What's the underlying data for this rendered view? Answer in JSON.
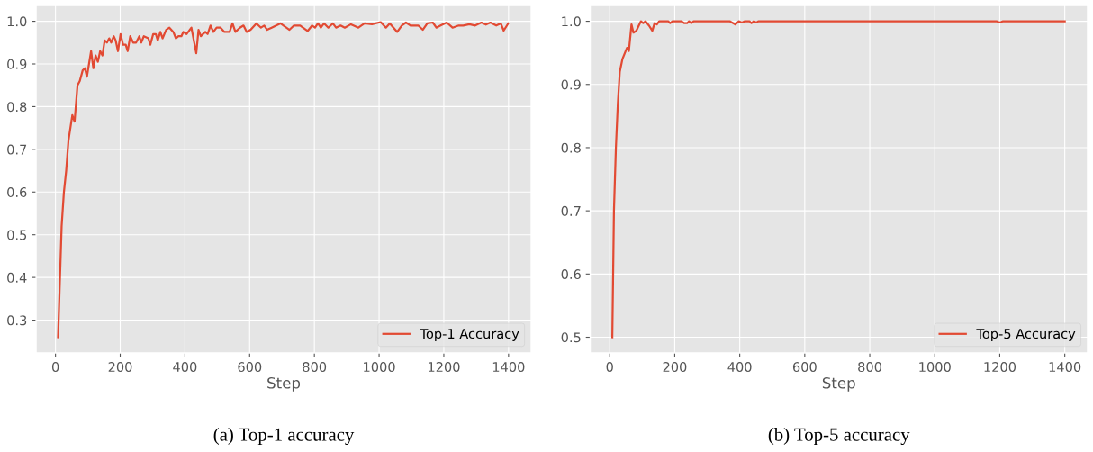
{
  "chart_data": [
    {
      "type": "line",
      "title": "(a) Top-1 accuracy",
      "xlabel": "Step",
      "xlim": [
        -60,
        1470
      ],
      "xticks": [
        0,
        200,
        400,
        600,
        800,
        1000,
        1200,
        1400
      ],
      "ylim": [
        0.223,
        1.037
      ],
      "yticks": [
        {
          "value": 0.3,
          "label": "0.3"
        },
        {
          "value": 0.4,
          "label": "0.4"
        },
        {
          "value": 0.5,
          "label": "0.5"
        },
        {
          "value": 0.6,
          "label": "0.6"
        },
        {
          "value": 0.7,
          "label": "0.7"
        },
        {
          "value": 0.8,
          "label": "0.8"
        },
        {
          "value": 0.9,
          "label": "0.9"
        },
        {
          "value": 1.0,
          "label": "1.0"
        }
      ],
      "grid": true,
      "legend": "bottom right",
      "marker": "none",
      "line_style": "solid",
      "series": [
        {
          "name": "Top-1 Accuracy",
          "color": "#e24a33",
          "x": [
            8,
            19,
            26,
            33,
            40,
            52,
            59,
            68,
            75,
            84,
            91,
            97,
            110,
            117,
            124,
            131,
            138,
            145,
            152,
            159,
            166,
            172,
            180,
            186,
            193,
            201,
            209,
            217,
            223,
            231,
            240,
            249,
            259,
            265,
            273,
            287,
            293,
            302,
            310,
            316,
            324,
            331,
            342,
            352,
            364,
            372,
            380,
            389,
            395,
            405,
            420,
            435,
            442,
            449,
            463,
            470,
            479,
            488,
            498,
            510,
            522,
            538,
            547,
            556,
            570,
            581,
            591,
            603,
            621,
            635,
            645,
            654,
            668,
            695,
            723,
            737,
            756,
            779,
            793,
            802,
            811,
            820,
            830,
            843,
            857,
            867,
            881,
            894,
            913,
            936,
            955,
            978,
            1005,
            1021,
            1033,
            1056,
            1070,
            1083,
            1097,
            1121,
            1135,
            1149,
            1166,
            1177,
            1190,
            1209,
            1227,
            1246,
            1260,
            1279,
            1297,
            1316,
            1330,
            1344,
            1362,
            1376,
            1385,
            1399
          ],
          "values": [
            0.26,
            0.52,
            0.6,
            0.65,
            0.72,
            0.78,
            0.765,
            0.85,
            0.86,
            0.885,
            0.89,
            0.87,
            0.93,
            0.89,
            0.92,
            0.905,
            0.93,
            0.92,
            0.955,
            0.95,
            0.96,
            0.95,
            0.965,
            0.955,
            0.93,
            0.97,
            0.945,
            0.945,
            0.93,
            0.965,
            0.95,
            0.95,
            0.965,
            0.95,
            0.965,
            0.96,
            0.945,
            0.97,
            0.97,
            0.955,
            0.975,
            0.96,
            0.98,
            0.985,
            0.975,
            0.96,
            0.965,
            0.965,
            0.975,
            0.97,
            0.985,
            0.925,
            0.98,
            0.965,
            0.975,
            0.97,
            0.99,
            0.975,
            0.985,
            0.985,
            0.975,
            0.975,
            0.995,
            0.975,
            0.985,
            0.99,
            0.975,
            0.98,
            0.995,
            0.985,
            0.99,
            0.98,
            0.985,
            0.995,
            0.98,
            0.99,
            0.99,
            0.977,
            0.99,
            0.985,
            0.995,
            0.985,
            0.995,
            0.985,
            0.995,
            0.985,
            0.99,
            0.985,
            0.993,
            0.985,
            0.995,
            0.993,
            0.998,
            0.985,
            0.995,
            0.975,
            0.99,
            0.997,
            0.99,
            0.99,
            0.98,
            0.995,
            0.997,
            0.985,
            0.99,
            0.997,
            0.985,
            0.99,
            0.99,
            0.993,
            0.99,
            0.997,
            0.992,
            0.997,
            0.99,
            0.995,
            0.978,
            0.995
          ]
        }
      ]
    },
    {
      "type": "line",
      "title": "(b) Top-5 accuracy",
      "xlabel": "Step",
      "xlim": [
        -60,
        1470
      ],
      "xticks": [
        0,
        200,
        400,
        600,
        800,
        1000,
        1200,
        1400
      ],
      "ylim": [
        0.475,
        1.025
      ],
      "yticks": [
        {
          "value": 0.5,
          "label": "0.5"
        },
        {
          "value": 0.6,
          "label": "0.6"
        },
        {
          "value": 0.7,
          "label": "0.7"
        },
        {
          "value": 0.8,
          "label": "0.8"
        },
        {
          "value": 0.9,
          "label": "0.9"
        },
        {
          "value": 1.0,
          "label": "1.0"
        }
      ],
      "grid": true,
      "legend": "bottom right",
      "marker": "none",
      "line_style": "solid",
      "series": [
        {
          "name": "Top-5 Accuracy",
          "color": "#e24a33",
          "x": [
            8,
            13,
            19,
            25,
            31,
            39,
            53,
            59,
            67,
            73,
            82,
            96,
            103,
            110,
            121,
            131,
            138,
            145,
            152,
            180,
            186,
            193,
            221,
            229,
            238,
            244,
            251,
            258,
            369,
            386,
            397,
            406,
            416,
            430,
            436,
            443,
            451,
            457,
            1190,
            1200,
            1210,
            1400
          ],
          "values": [
            0.5,
            0.7,
            0.8,
            0.87,
            0.92,
            0.94,
            0.958,
            0.953,
            0.995,
            0.982,
            0.985,
            1.0,
            0.997,
            1.0,
            0.993,
            0.985,
            0.997,
            0.995,
            1.0,
            1.0,
            0.997,
            1.0,
            1.0,
            0.997,
            0.997,
            1.0,
            0.997,
            1.0,
            1.0,
            0.995,
            1.0,
            0.998,
            1.0,
            1.0,
            0.997,
            1.0,
            0.998,
            1.0,
            1.0,
            0.998,
            1.0,
            1.0
          ]
        }
      ]
    }
  ]
}
